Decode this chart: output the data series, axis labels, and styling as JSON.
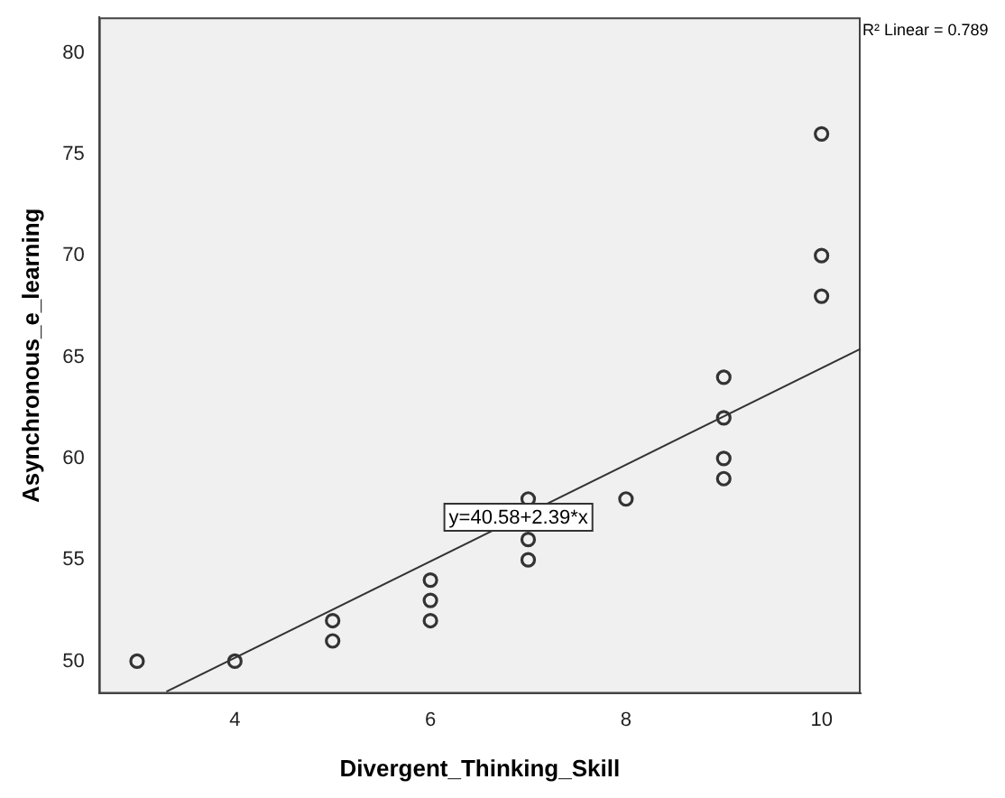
{
  "chart_data": {
    "type": "scatter",
    "xlabel": "Divergent_Thinking_Skill",
    "ylabel": "Asynchronous_e_learning",
    "xlim": [
      2.61,
      10.4
    ],
    "xticks": [
      4,
      6,
      8,
      10
    ],
    "ylim": [
      48.4,
      81.75
    ],
    "yticks": [
      50,
      55,
      60,
      65,
      70,
      75,
      80
    ],
    "grid": false,
    "legend": false,
    "marker": "circle",
    "series": [
      {
        "color": "#333333",
        "x": [
          3,
          4,
          5,
          5,
          6,
          6,
          6,
          7,
          7,
          7,
          8,
          9,
          9,
          9,
          9,
          10,
          10,
          10
        ],
        "values": [
          50,
          50,
          52,
          51,
          54,
          53,
          52,
          58,
          56,
          55,
          58,
          64,
          62,
          60,
          59,
          76,
          70,
          68
        ]
      },
      {
        "type": "line",
        "color": "#333333",
        "marker": "none",
        "line_style": "solid",
        "x": [
          3.3,
          10.4
        ],
        "values": [
          48.5,
          65.4
        ]
      }
    ],
    "annotations": [
      "R² Linear = 0.789",
      {
        "text": "y=40.58+2.39*x",
        "x": 6.9,
        "y": 57.1
      }
    ]
  }
}
